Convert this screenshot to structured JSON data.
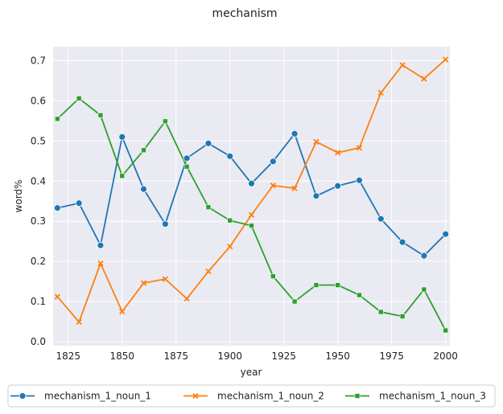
{
  "chart_data": {
    "type": "line",
    "title": "mechanism",
    "xlabel": "year",
    "ylabel": "word%",
    "xlim": [
      1818,
      2002
    ],
    "ylim": [
      -0.01,
      0.735
    ],
    "x_ticks": [
      1825,
      1850,
      1875,
      1900,
      1925,
      1950,
      1975,
      2000
    ],
    "y_ticks": [
      0.0,
      0.1,
      0.2,
      0.3,
      0.4,
      0.5,
      0.6,
      0.7
    ],
    "grid": true,
    "legend_position": "bottom",
    "x": [
      1820,
      1830,
      1840,
      1850,
      1860,
      1870,
      1880,
      1890,
      1900,
      1910,
      1920,
      1930,
      1940,
      1950,
      1960,
      1970,
      1980,
      1990,
      2000
    ],
    "series": [
      {
        "name": "mechanism_1_noun_1",
        "color": "#1f77b4",
        "marker": "circle",
        "values": [
          0.333,
          0.345,
          0.24,
          0.51,
          0.38,
          0.293,
          0.457,
          0.494,
          0.462,
          0.394,
          0.449,
          0.518,
          0.363,
          0.388,
          0.402,
          0.306,
          0.248,
          0.214,
          0.268
        ]
      },
      {
        "name": "mechanism_1_noun_2",
        "color": "#ff7f0e",
        "marker": "x",
        "values": [
          0.112,
          0.049,
          0.195,
          0.075,
          0.146,
          0.156,
          0.107,
          0.175,
          0.237,
          0.316,
          0.389,
          0.382,
          0.498,
          0.471,
          0.483,
          0.62,
          0.689,
          0.655,
          0.703
        ]
      },
      {
        "name": "mechanism_1_noun_3",
        "color": "#2ca02c",
        "marker": "square",
        "values": [
          0.555,
          0.606,
          0.564,
          0.413,
          0.477,
          0.549,
          0.436,
          0.335,
          0.302,
          0.289,
          0.163,
          0.1,
          0.141,
          0.141,
          0.116,
          0.074,
          0.063,
          0.13,
          0.028
        ]
      }
    ]
  }
}
